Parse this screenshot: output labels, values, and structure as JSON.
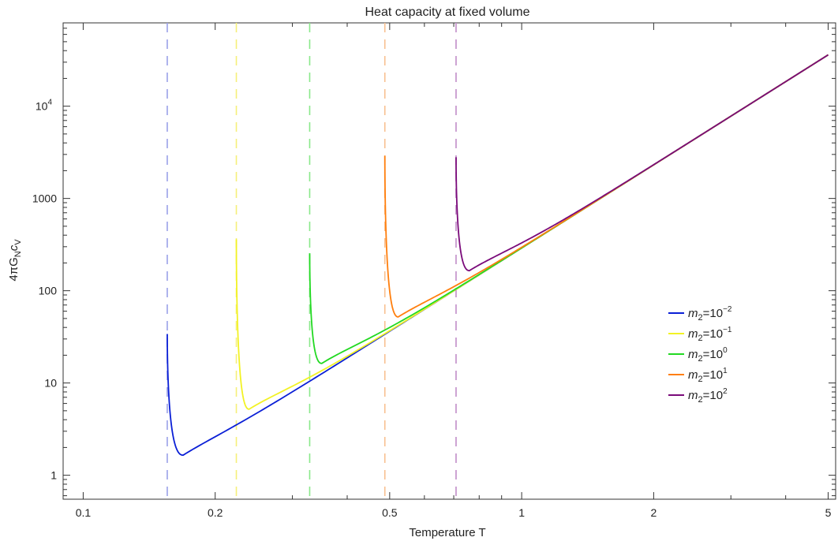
{
  "chart_data": {
    "type": "line",
    "title": "Heat capacity at fixed volume",
    "xlabel": "Temperature T",
    "ylabel_parts": {
      "a": "4πG",
      "b": "N",
      "c": "c",
      "d": "V"
    },
    "xscale": "log",
    "yscale": "log",
    "xlim": [
      0.09,
      5.2
    ],
    "ylim": [
      0.55,
      80000
    ],
    "xticks": [
      {
        "value": 0.1,
        "label": "0.1"
      },
      {
        "value": 0.2,
        "label": "0.2"
      },
      {
        "value": 0.5,
        "label": "0.5"
      },
      {
        "value": 1,
        "label": "1"
      },
      {
        "value": 2,
        "label": "2"
      },
      {
        "value": 5,
        "label": "5"
      }
    ],
    "yticks": [
      {
        "value": 1,
        "label": "1"
      },
      {
        "value": 10,
        "label": "10"
      },
      {
        "value": 100,
        "label": "100"
      },
      {
        "value": 1000,
        "label": "1000"
      },
      {
        "value": 10000,
        "label": "10",
        "sup": "4"
      }
    ],
    "legend_position": "right",
    "series": [
      {
        "label": "m",
        "sub": "2",
        "eq": "=10",
        "exp": "−2",
        "color": "#0a1fd6",
        "tmin": 0.1555,
        "cpeak": 34,
        "cmin": 1.65,
        "tmin_c": 0.169
      },
      {
        "label": "m",
        "sub": "2",
        "eq": "=10",
        "exp": "−1",
        "color": "#f2f224",
        "tmin": 0.2235,
        "cpeak": 360,
        "cmin": 5.2,
        "tmin_c": 0.239
      },
      {
        "label": "m",
        "sub": "2",
        "eq": "=10",
        "exp": "0",
        "color": "#22d922",
        "tmin": 0.3285,
        "cpeak": 255,
        "cmin": 16.3,
        "tmin_c": 0.35
      },
      {
        "label": "m",
        "sub": "2",
        "eq": "=10",
        "exp": "1",
        "color": "#ff7f0e",
        "tmin": 0.4875,
        "cpeak": 2900,
        "cmin": 52,
        "tmin_c": 0.523
      },
      {
        "label": "m",
        "sub": "2",
        "eq": "=10",
        "exp": "2",
        "color": "#7a0a7a",
        "tmin": 0.7085,
        "cpeak": 2800,
        "cmin": 165,
        "tmin_c": 0.76
      }
    ],
    "asymptote": {
      "t1": 1,
      "c1": 290,
      "t2": 5,
      "c2": 36000
    },
    "vlines": [
      0.1555,
      0.2235,
      0.3285,
      0.4875,
      0.7085
    ],
    "vline_colors": [
      "#9aa0e8",
      "#f5f07a",
      "#8ae88a",
      "#f8c090",
      "#c08cc8"
    ]
  }
}
